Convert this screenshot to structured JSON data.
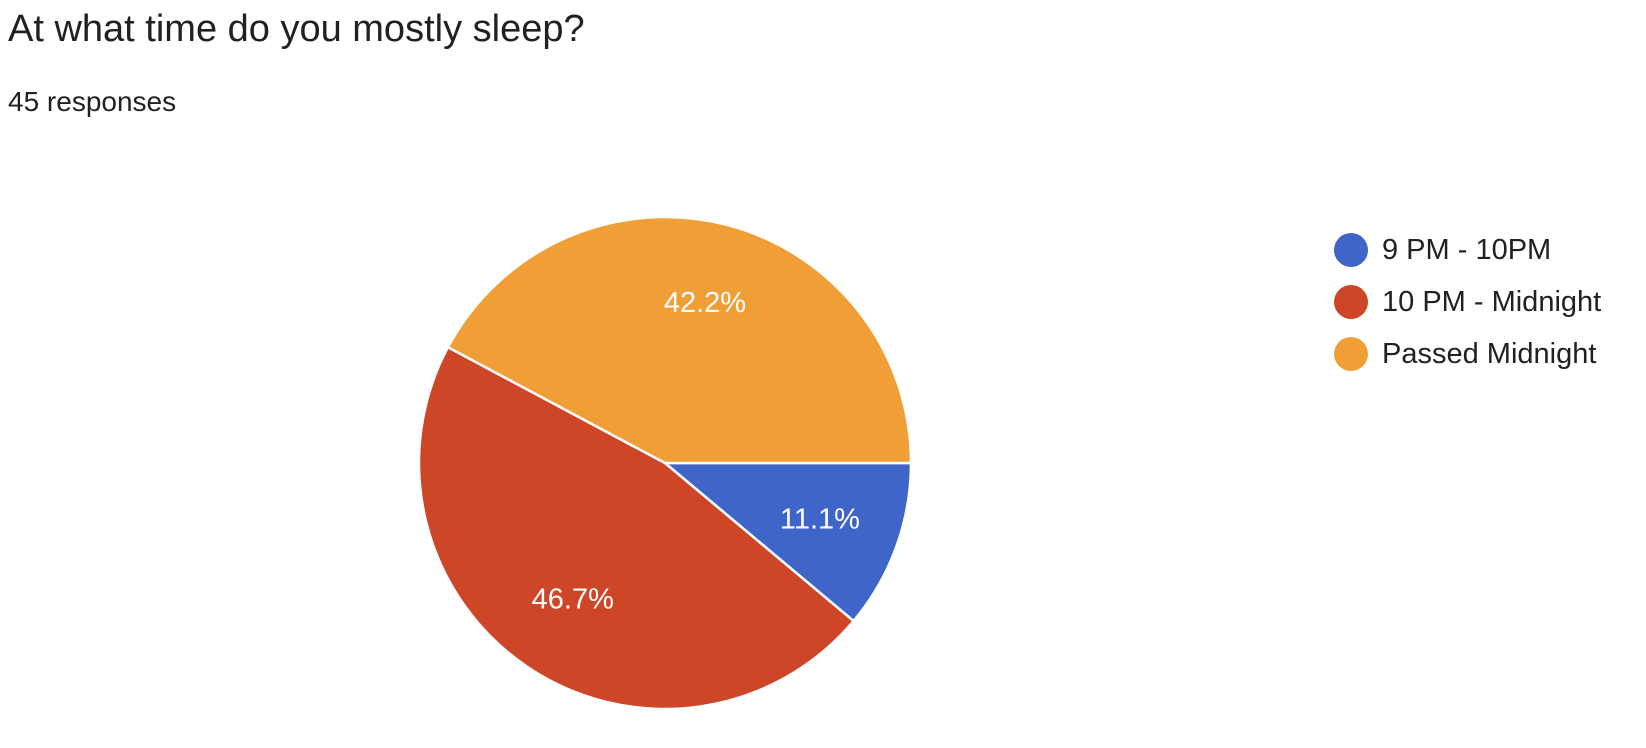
{
  "question": {
    "title": "At what time do you mostly sleep?",
    "responses": "45 responses"
  },
  "chart_data": {
    "type": "pie",
    "title": "",
    "categories": [
      "9 PM - 10PM",
      "10 PM - Midnight",
      "Passed Midnight"
    ],
    "values": [
      11.1,
      46.7,
      42.2
    ],
    "labels": [
      "11.1%",
      "46.7%",
      "42.2%"
    ],
    "colors": [
      "#4065c8",
      "#cc4627",
      "#f09f37"
    ],
    "start_direction": "right",
    "direction": "clockwise",
    "legend_placement": "right"
  }
}
